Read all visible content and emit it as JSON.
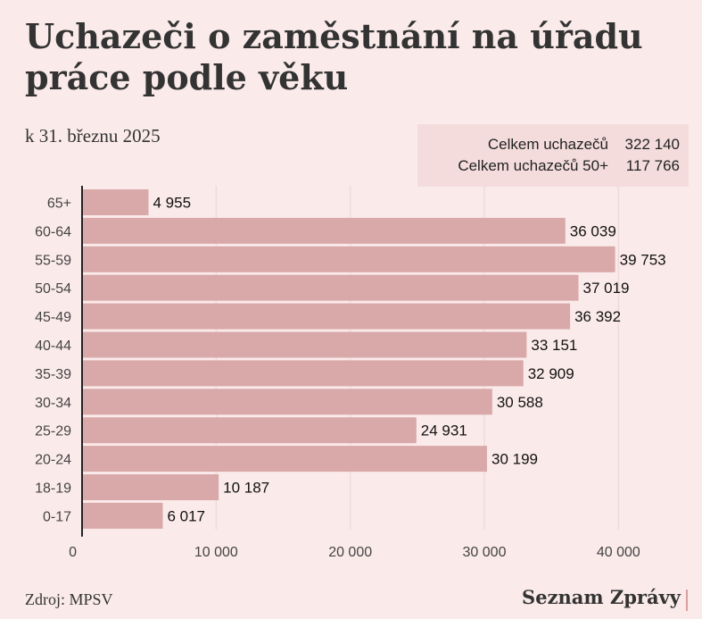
{
  "title": "Uchazeči o zaměstnání na úřadu práce podle věku",
  "subtitle": "k 31. březnu 2025",
  "summary": [
    {
      "label": "Celkem uchazečů",
      "value": "322 140"
    },
    {
      "label": "Celkem uchazečů 50+",
      "value": "117 766"
    }
  ],
  "source": "Zdroj: MPSV",
  "brand": "Seznam Zprávy",
  "colors": {
    "bar": "#d9a9a9",
    "background": "#fbeaea",
    "grid": "#efdada"
  },
  "chart_data": {
    "type": "bar",
    "orientation": "horizontal",
    "title": "Uchazeči o zaměstnání na úřadu práce podle věku",
    "categories": [
      "65+",
      "60-64",
      "55-59",
      "50-54",
      "45-49",
      "40-44",
      "35-39",
      "30-34",
      "25-29",
      "20-24",
      "18-19",
      "0-17"
    ],
    "values": [
      4955,
      36039,
      39753,
      37019,
      36392,
      33151,
      32909,
      30588,
      24931,
      30199,
      10187,
      6017
    ],
    "value_labels": [
      "4 955",
      "36 039",
      "39 753",
      "37 019",
      "36 392",
      "33 151",
      "32 909",
      "30 588",
      "24 931",
      "30 199",
      "10 187",
      "6 017"
    ],
    "xticks": [
      0,
      10000,
      20000,
      30000,
      40000
    ],
    "xtick_labels": [
      "0",
      "10 000",
      "20 000",
      "30 000",
      "40 000"
    ],
    "xlim": [
      0,
      40000
    ],
    "grid": true
  }
}
